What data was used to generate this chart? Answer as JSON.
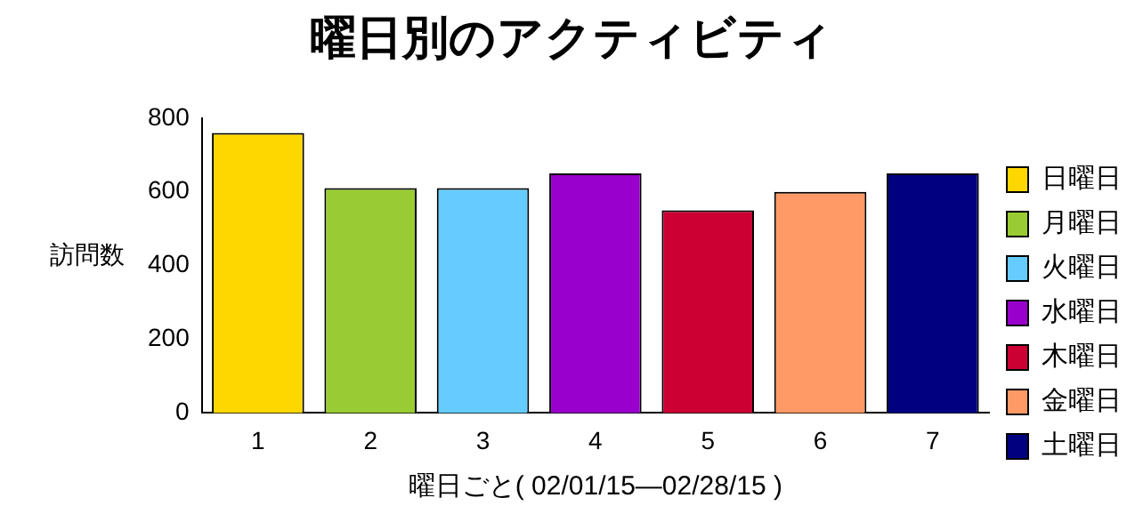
{
  "chart_data": {
    "type": "bar",
    "title": "曜日別のアクティビティ",
    "xlabel": "曜日ごと( 02/01/15—02/28/15 )",
    "ylabel": "訪問数",
    "categories": [
      "1",
      "2",
      "3",
      "4",
      "5",
      "6",
      "7"
    ],
    "series": [
      {
        "name": "日曜日",
        "color": "#ffd700",
        "values": [
          760,
          null,
          null,
          null,
          null,
          null,
          null
        ]
      },
      {
        "name": "月曜日",
        "color": "#99cc33",
        "values": [
          null,
          610,
          null,
          null,
          null,
          null,
          null
        ]
      },
      {
        "name": "火曜日",
        "color": "#66ccff",
        "values": [
          null,
          null,
          610,
          null,
          null,
          null,
          null
        ]
      },
      {
        "name": "水曜日",
        "color": "#9900cc",
        "values": [
          null,
          null,
          null,
          650,
          null,
          null,
          null
        ]
      },
      {
        "name": "木曜日",
        "color": "#cc0033",
        "values": [
          null,
          null,
          null,
          null,
          550,
          null,
          null
        ]
      },
      {
        "name": "金曜日",
        "color": "#ff9966",
        "values": [
          null,
          null,
          null,
          null,
          null,
          600,
          null
        ]
      },
      {
        "name": "土曜日",
        "color": "#000080",
        "values": [
          null,
          null,
          null,
          null,
          null,
          null,
          650
        ]
      }
    ],
    "ylim": [
      0,
      800
    ],
    "yticks": [
      0,
      200,
      400,
      600,
      800
    ],
    "grid": false,
    "legend": "right"
  }
}
